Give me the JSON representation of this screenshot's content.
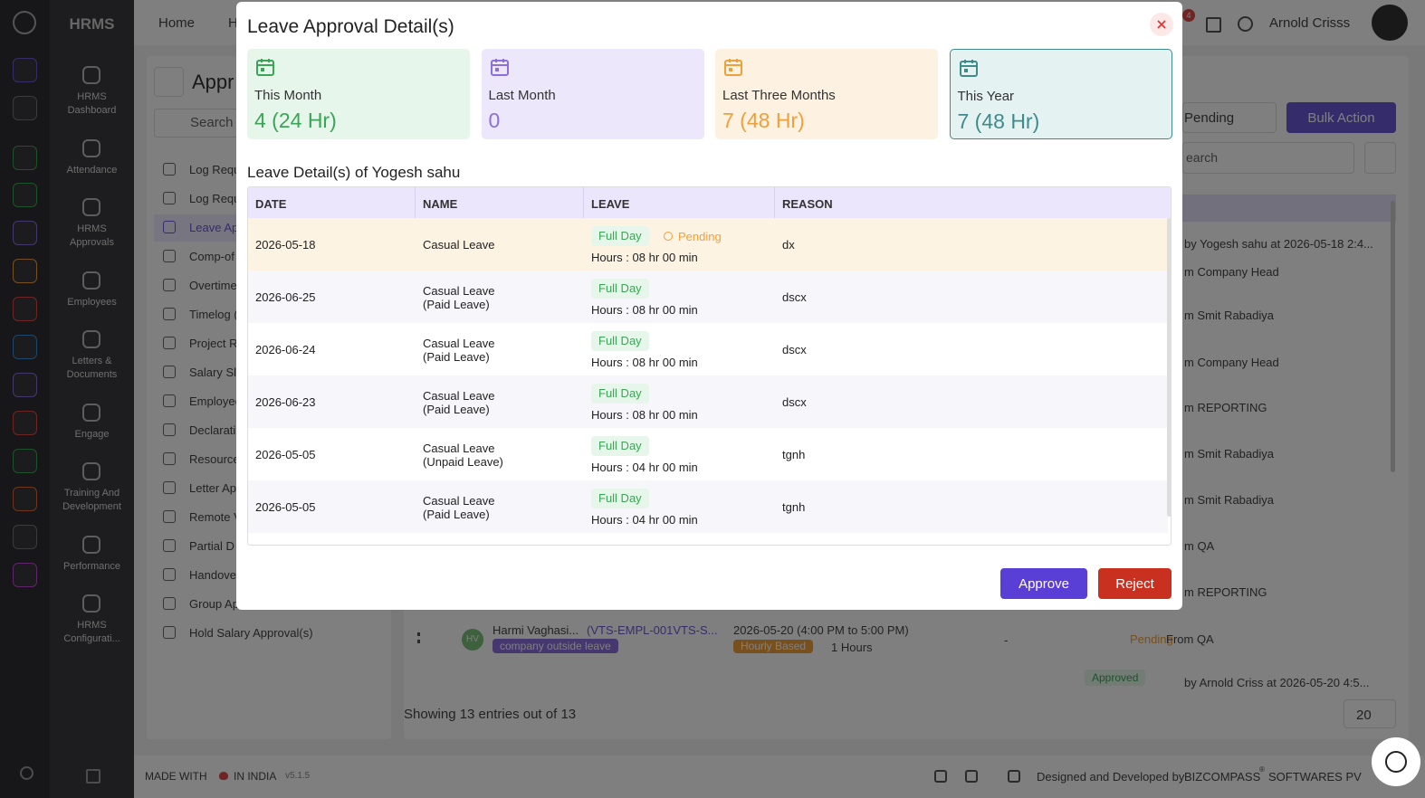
{
  "app": {
    "brand": "HRMS",
    "nav": [
      [
        "HRMS",
        "Dashboard"
      ],
      [
        "Attendance"
      ],
      [
        "HRMS",
        "Approvals"
      ],
      [
        "Employees"
      ],
      [
        "Letters &",
        "Documents"
      ],
      [
        "Engage"
      ],
      [
        "Training And",
        "Development"
      ],
      [
        "Performance"
      ],
      [
        "HRMS",
        "Configurati..."
      ]
    ],
    "top_nav": [
      "Home",
      "H"
    ],
    "notification_count": "4",
    "user": "Arnold Crisss"
  },
  "submenu": {
    "title": "Appr",
    "search": "Search",
    "items": [
      "Log Requ",
      "Log Requ",
      "Leave Ap",
      "Comp-of",
      "Overtime",
      "Timelog (",
      "Project R",
      "Salary Sl",
      "Employee",
      "Declarati",
      "Resource",
      "Letter Ap",
      "Remote V",
      "Partial D",
      "Handove",
      "Group Ap",
      "Hold Salary Approval(s)"
    ],
    "active": 2
  },
  "background_list": {
    "status_filter": "Pending",
    "bulk_action": "Bulk Action",
    "search": "earch",
    "approver_notes": [
      "by Yogesh sahu at 2026-05-18 2:4...",
      "m Company Head",
      "m Smit Rabadiya",
      "m Company Head",
      "m REPORTING",
      "m Smit Rabadiya",
      "m Smit Rabadiya",
      "m QA",
      "m REPORTING"
    ],
    "row": {
      "initials": "HV",
      "employee": "Harmi Vaghasi...",
      "code": "(VTS-EMPL-001VTS-S...",
      "leave_type": "company outside leave",
      "period": "2026-05-20 (4:00 PM to 5:00 PM)",
      "kind": "Hourly Based",
      "duration": "1 Hours",
      "reason": "-",
      "status": "Pending",
      "note": "From QA"
    },
    "row2": {
      "status": "Approved",
      "note": "by Arnold Criss at 2026-05-20 4:5..."
    },
    "summary": "Showing 13 entries out of 13",
    "page_size": "20"
  },
  "footer": {
    "made_with": "MADE WITH",
    "in_india": "IN INDIA",
    "version": "v5.1.5",
    "designed": "Designed and Developed by",
    "company": "BIZCOMPASS",
    "reg": "®",
    "company_rest": "SOFTWARES PV"
  },
  "modal": {
    "title": "Leave Approval Detail(s)",
    "cards": [
      {
        "label": "This Month",
        "value": "4 (24 Hr)",
        "color": "#3aa655",
        "bg": "#e7f6ea"
      },
      {
        "label": "Last Month",
        "value": "0",
        "color": "#8c6fdc",
        "bg": "#ede7fb"
      },
      {
        "label": "Last Three Months",
        "value": "7 (48 Hr)",
        "color": "#eea13a",
        "bg": "#fdf2e1"
      },
      {
        "label": "This Year",
        "value": "7 (48 Hr)",
        "color": "#3f8b8b",
        "bg": "#e4f2f2"
      }
    ],
    "section_title": "Leave Detail(s) of Yogesh sahu",
    "columns": [
      "DATE",
      "NAME",
      "LEAVE",
      "REASON"
    ],
    "rows": [
      {
        "date": "2026-05-18",
        "name": "Casual Leave",
        "leave": "Full Day",
        "status": "Pending",
        "hours": "Hours : 08 hr 00 min",
        "reason": "dx"
      },
      {
        "date": "2026-06-25",
        "name": "Casual Leave",
        "sub": "(Paid Leave)",
        "leave": "Full Day",
        "hours": "Hours : 08 hr 00 min",
        "reason": "dscx"
      },
      {
        "date": "2026-06-24",
        "name": "Casual Leave",
        "sub": "(Paid Leave)",
        "leave": "Full Day",
        "hours": "Hours : 08 hr 00 min",
        "reason": "dscx"
      },
      {
        "date": "2026-06-23",
        "name": "Casual Leave",
        "sub": "(Paid Leave)",
        "leave": "Full Day",
        "hours": "Hours : 08 hr 00 min",
        "reason": "dscx"
      },
      {
        "date": "2026-05-05",
        "name": "Casual Leave",
        "sub": "(Unpaid Leave)",
        "leave": "Full Day",
        "hours": "Hours : 04 hr 00 min",
        "reason": "tgnh"
      },
      {
        "date": "2026-05-05",
        "name": "Casual Leave",
        "sub": "(Paid Leave)",
        "leave": "Full Day",
        "hours": "Hours : 04 hr 00 min",
        "reason": "tgnh"
      }
    ],
    "approve": "Approve",
    "reject": "Reject"
  }
}
